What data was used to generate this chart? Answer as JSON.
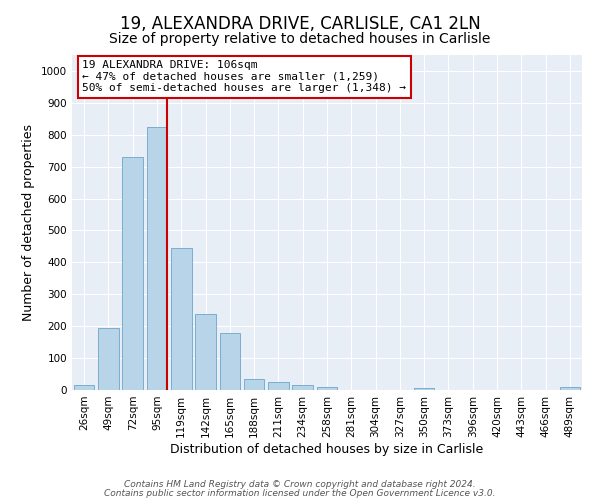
{
  "title": "19, ALEXANDRA DRIVE, CARLISLE, CA1 2LN",
  "subtitle": "Size of property relative to detached houses in Carlisle",
  "xlabel": "Distribution of detached houses by size in Carlisle",
  "ylabel": "Number of detached properties",
  "bar_labels": [
    "26sqm",
    "49sqm",
    "72sqm",
    "95sqm",
    "119sqm",
    "142sqm",
    "165sqm",
    "188sqm",
    "211sqm",
    "234sqm",
    "258sqm",
    "281sqm",
    "304sqm",
    "327sqm",
    "350sqm",
    "373sqm",
    "396sqm",
    "420sqm",
    "443sqm",
    "466sqm",
    "489sqm"
  ],
  "bar_values": [
    15,
    195,
    730,
    825,
    445,
    238,
    178,
    35,
    25,
    15,
    8,
    0,
    0,
    0,
    5,
    0,
    0,
    0,
    0,
    0,
    8
  ],
  "bar_color": "#b8d4e8",
  "bar_edge_color": "#7aaecf",
  "vline_color": "#cc0000",
  "annotation_title": "19 ALEXANDRA DRIVE: 106sqm",
  "annotation_line1": "← 47% of detached houses are smaller (1,259)",
  "annotation_line2": "50% of semi-detached houses are larger (1,348) →",
  "annotation_box_facecolor": "#ffffff",
  "annotation_box_edgecolor": "#cc0000",
  "ylim": [
    0,
    1050
  ],
  "footer1": "Contains HM Land Registry data © Crown copyright and database right 2024.",
  "footer2": "Contains public sector information licensed under the Open Government Licence v3.0.",
  "fig_bg_color": "#ffffff",
  "axes_bg_color": "#e8eef6",
  "grid_color": "#ffffff",
  "title_fontsize": 12,
  "subtitle_fontsize": 10,
  "axis_label_fontsize": 9,
  "tick_fontsize": 7.5,
  "annotation_fontsize": 8,
  "footer_fontsize": 6.5
}
